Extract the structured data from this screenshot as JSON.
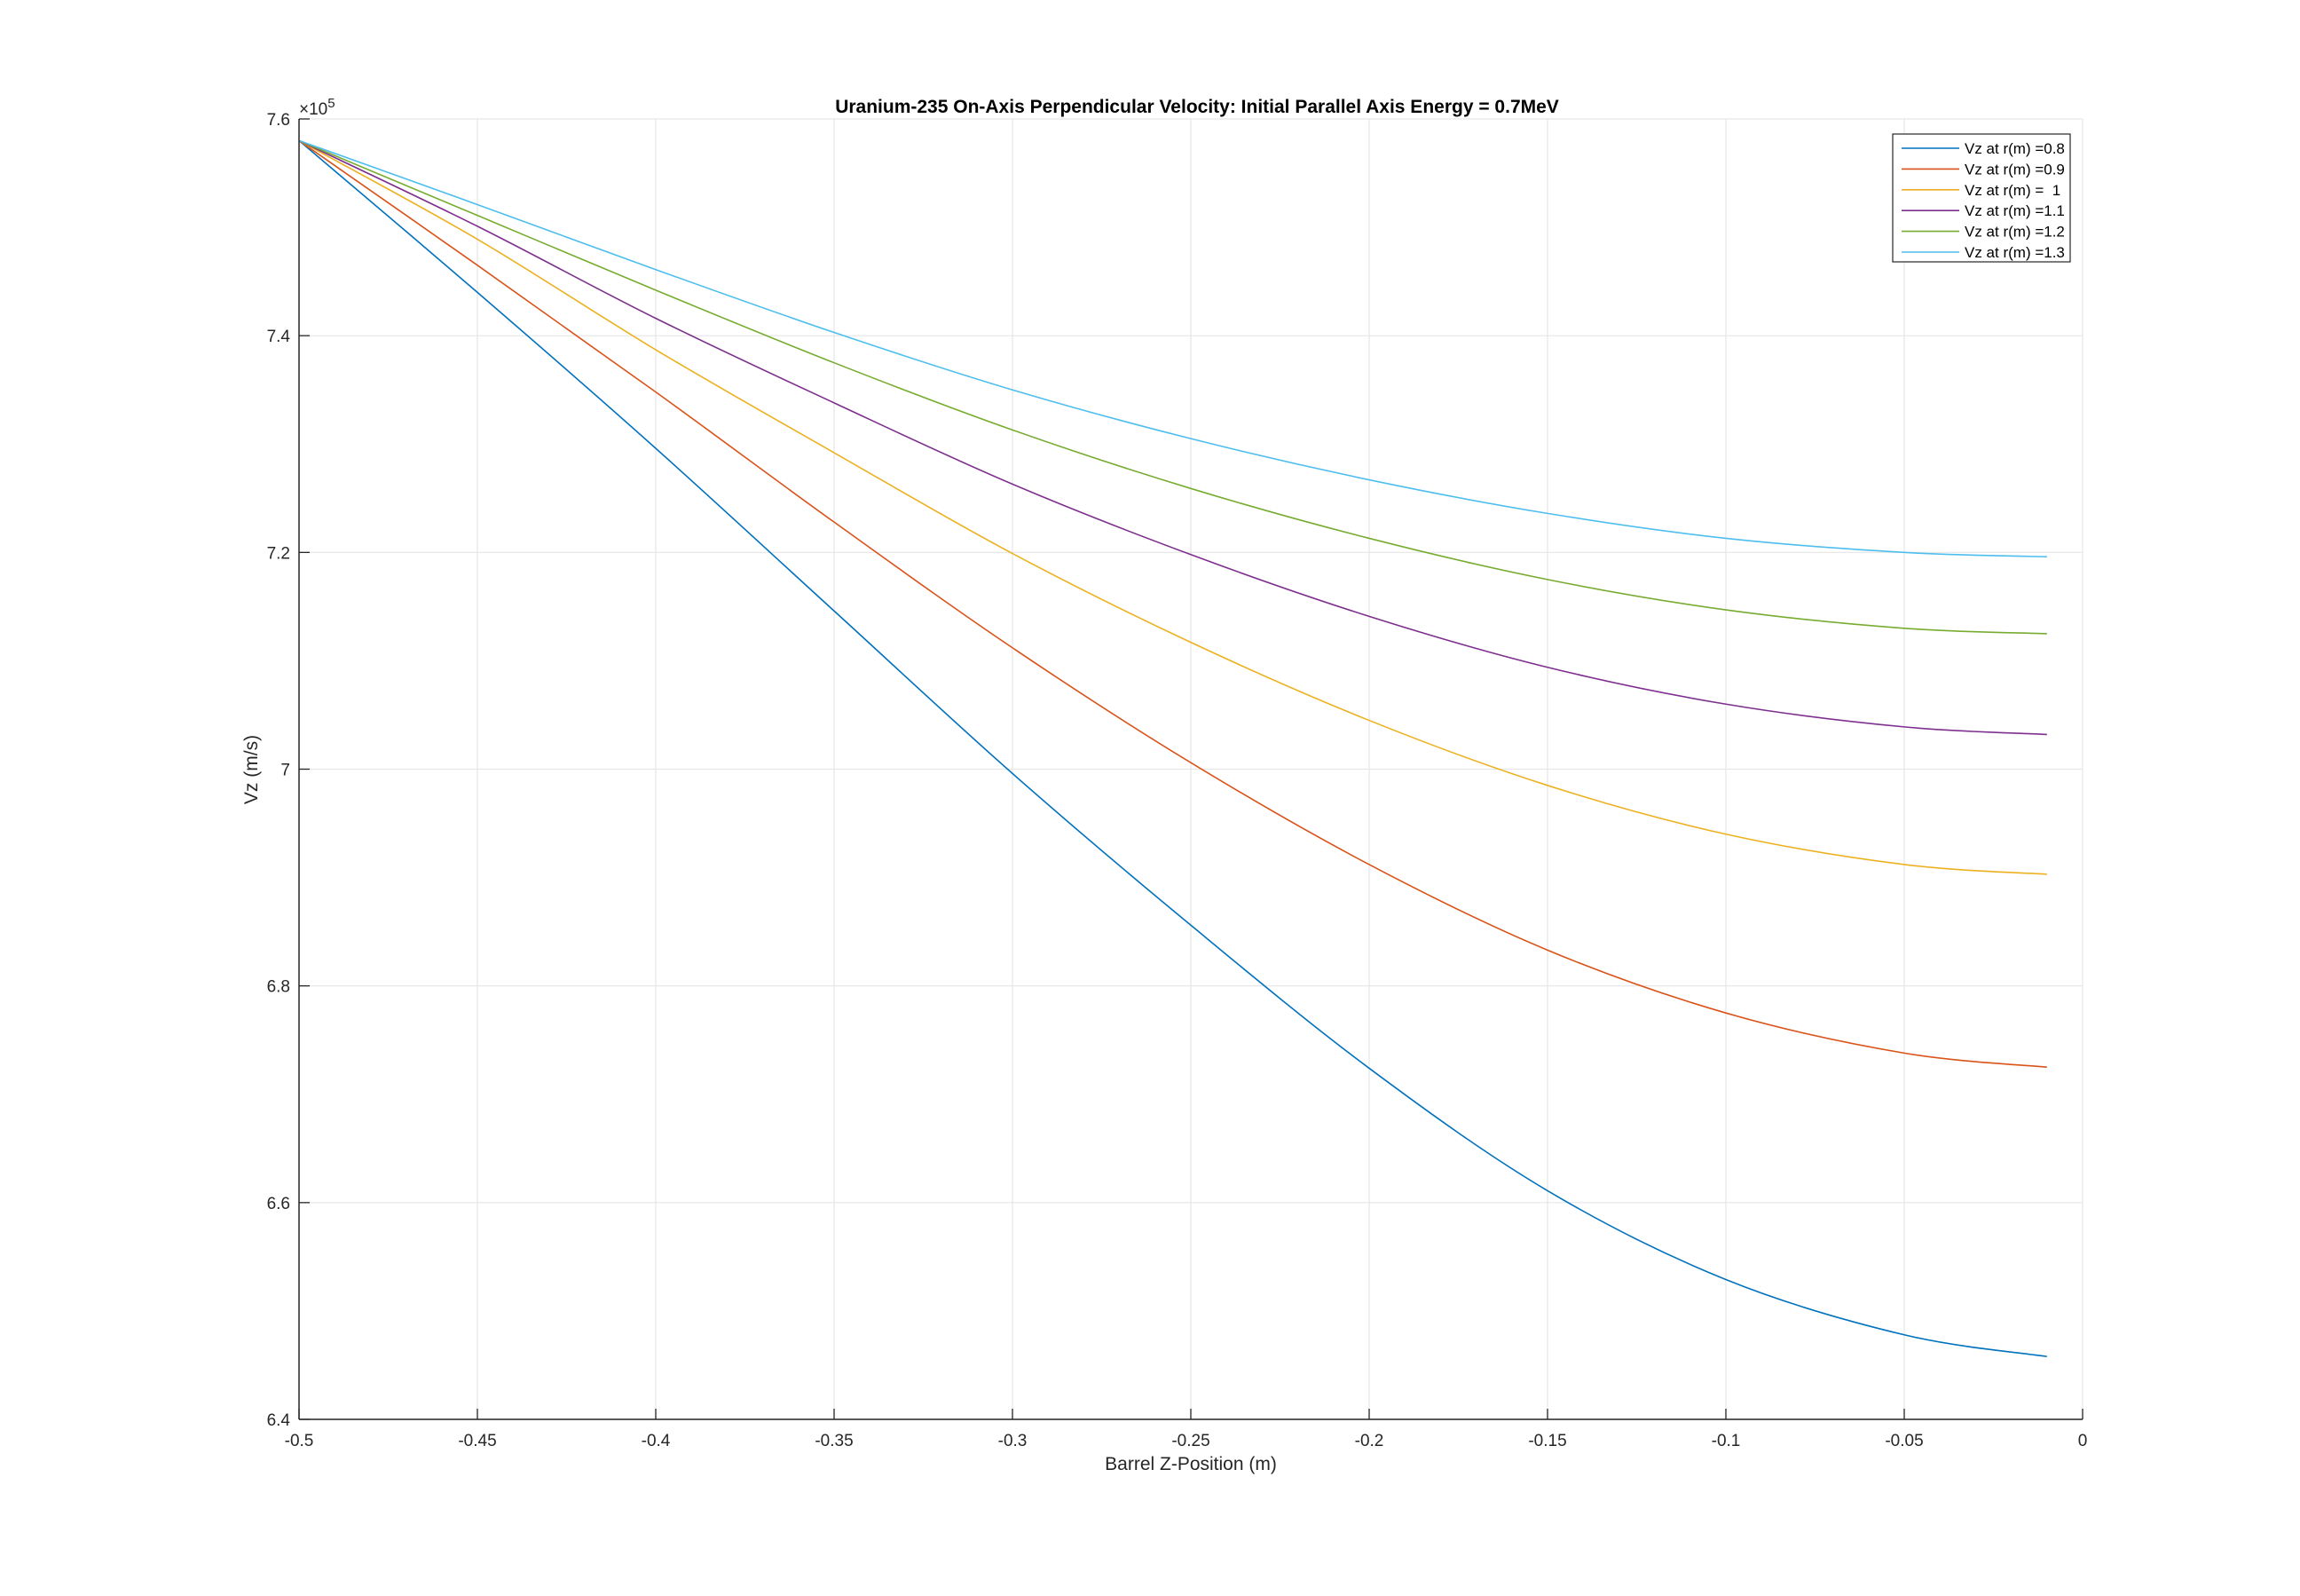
{
  "chart_data": {
    "type": "line",
    "title": "Uranium-235 On-Axis Perpendicular Velocity: Initial Parallel Axis Energy = 0.7MeV",
    "xlabel": "Barrel Z-Position (m)",
    "ylabel": "Vz (m/s)",
    "y_exponent_label": "×10",
    "y_exponent_power": "5",
    "xlim": [
      -0.5,
      0
    ],
    "ylim": [
      6.4,
      7.6
    ],
    "xticks": [
      -0.5,
      -0.45,
      -0.4,
      -0.35,
      -0.3,
      -0.25,
      -0.2,
      -0.15,
      -0.1,
      -0.05,
      0
    ],
    "xtick_labels": [
      "-0.5",
      "-0.45",
      "-0.4",
      "-0.35",
      "-0.3",
      "-0.25",
      "-0.2",
      "-0.15",
      "-0.1",
      "-0.05",
      "0"
    ],
    "yticks": [
      6.4,
      6.6,
      6.8,
      7.0,
      7.2,
      7.4,
      7.6
    ],
    "ytick_labels": [
      "6.4",
      "6.6",
      "6.8",
      "7",
      "7.2",
      "7.4",
      "7.6"
    ],
    "grid": true,
    "legend_position": "top-right",
    "x": [
      -0.5,
      -0.45,
      -0.4,
      -0.35,
      -0.3,
      -0.25,
      -0.2,
      -0.15,
      -0.1,
      -0.05,
      -0.01
    ],
    "series": [
      {
        "name": "Vz at r(m) =0.8",
        "color": "#0072BD",
        "values": [
          7.58,
          7.44,
          7.296,
          7.146,
          6.996,
          6.856,
          6.724,
          6.611,
          6.529,
          6.478,
          6.458
        ]
      },
      {
        "name": "Vz at r(m) =0.9",
        "color": "#D95319",
        "values": [
          7.58,
          7.465,
          7.348,
          7.228,
          7.112,
          7.006,
          6.912,
          6.833,
          6.775,
          6.738,
          6.725
        ]
      },
      {
        "name": "Vz at r(m) =  1",
        "color": "#EDB120",
        "values": [
          7.58,
          7.489,
          7.387,
          7.292,
          7.199,
          7.117,
          7.045,
          6.985,
          6.94,
          6.912,
          6.903
        ]
      },
      {
        "name": "Vz at r(m) =1.1",
        "color": "#7E2F8E",
        "values": [
          7.58,
          7.501,
          7.416,
          7.338,
          7.263,
          7.198,
          7.141,
          7.094,
          7.06,
          7.039,
          7.032
        ]
      },
      {
        "name": "Vz at r(m) =1.2",
        "color": "#77AC30",
        "values": [
          7.58,
          7.511,
          7.442,
          7.375,
          7.313,
          7.259,
          7.213,
          7.175,
          7.147,
          7.13,
          7.125
        ]
      },
      {
        "name": "Vz at r(m) =1.3",
        "color": "#4DBEEE",
        "values": [
          7.58,
          7.521,
          7.461,
          7.403,
          7.35,
          7.305,
          7.267,
          7.236,
          7.213,
          7.2,
          7.196
        ]
      }
    ]
  }
}
